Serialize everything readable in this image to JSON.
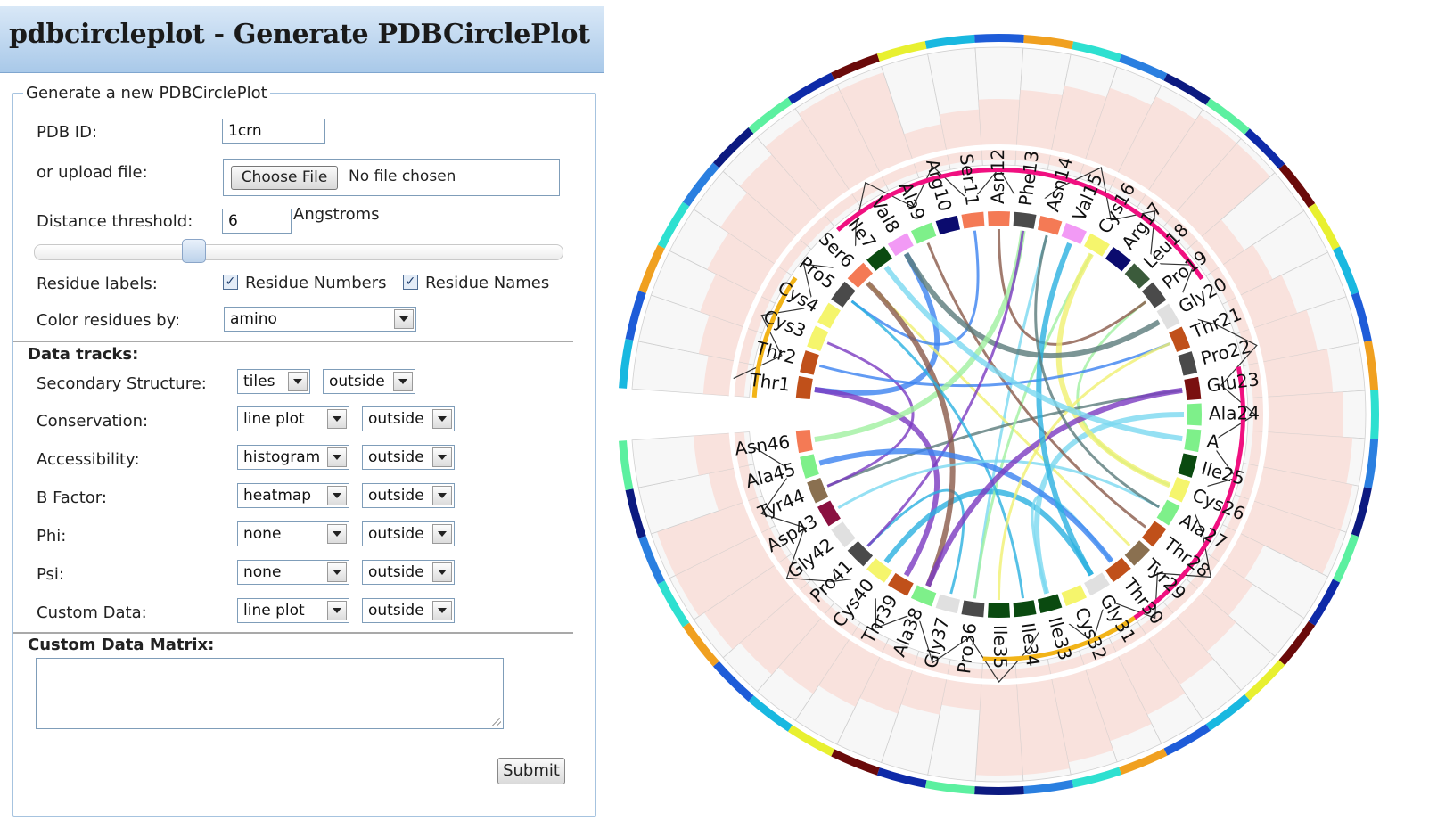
{
  "page": {
    "title": "pdbcircleplot - Generate PDBCirclePlot"
  },
  "form": {
    "legend": "Generate a new PDBCirclePlot",
    "pdb_id_label": "PDB ID:",
    "pdb_id_value": "1crn",
    "upload_label": "or upload file:",
    "choose_file_label": "Choose File",
    "no_file_text": "No file chosen",
    "distance_label": "Distance threshold:",
    "distance_value": "6",
    "distance_unit": "Angstroms",
    "distance_slider_fraction": 0.3,
    "residue_labels_label": "Residue labels:",
    "residue_numbers_label": "Residue Numbers",
    "residue_numbers_checked": true,
    "residue_names_label": "Residue Names",
    "residue_names_checked": true,
    "color_by_label": "Color residues by:",
    "color_by_value": "amino"
  },
  "data_tracks": {
    "heading": "Data tracks:",
    "rows": [
      {
        "label": "Secondary Structure:",
        "type": "tiles",
        "position": "outside"
      },
      {
        "label": "Conservation:",
        "type": "line plot",
        "position": "outside"
      },
      {
        "label": "Accessibility:",
        "type": "histogram",
        "position": "outside"
      },
      {
        "label": "B Factor:",
        "type": "heatmap",
        "position": "outside"
      },
      {
        "label": "Phi:",
        "type": "none",
        "position": "outside"
      },
      {
        "label": "Psi:",
        "type": "none",
        "position": "outside"
      },
      {
        "label": "Custom Data:",
        "type": "line plot",
        "position": "outside"
      }
    ]
  },
  "custom_matrix": {
    "heading": "Custom Data Matrix:",
    "value": ""
  },
  "submit_label": "Submit",
  "circle_plot": {
    "residues": [
      "Thr1",
      "Thr2",
      "Cys3",
      "Cys4",
      "Pro5",
      "Ser6",
      "Ile7",
      "Val8",
      "Ala9",
      "Arg10",
      "Ser11",
      "Asn12",
      "Phe13",
      "Asn14",
      "Val15",
      "Cys16",
      "Arg17",
      "Leu18",
      "Pro19",
      "Gly20",
      "Thr21",
      "Pro22",
      "Glu23",
      "Ala24",
      "A",
      "Ile25",
      "Cys26",
      "Ala27",
      "Thr28",
      "Tyr29",
      "Thr30",
      "Gly31",
      "Cys32",
      "Ile33",
      "Ile34",
      "Ile35",
      "Pro36",
      "Gly37",
      "Ala38",
      "Thr39",
      "Cys40",
      "Pro41",
      "Gly42",
      "Asp43",
      "Tyr44",
      "Ala45",
      "Asn46"
    ],
    "residue_colors": [
      "#c0501a",
      "#c0501a",
      "#f5f56c",
      "#f5f56c",
      "#4a4a4a",
      "#f47a55",
      "#0a4a10",
      "#f29af5",
      "#7ef08a",
      "#0b0b6e",
      "#f47a55",
      "#f47a55",
      "#4a4a4a",
      "#f47a55",
      "#f29af5",
      "#f5f56c",
      "#0b0b6e",
      "#3b5b3b",
      "#4a4a4a",
      "#e0e0e0",
      "#c0501a",
      "#4a4a4a",
      "#7a1010",
      "#7ef08a",
      "#7ef08a",
      "#0a4a10",
      "#f5f56c",
      "#7ef08a",
      "#c0501a",
      "#8a7050",
      "#c0501a",
      "#e0e0e0",
      "#f5f56c",
      "#0a4a10",
      "#0a4a10",
      "#0a4a10",
      "#4a4a4a",
      "#e0e0e0",
      "#7ef08a",
      "#c0501a",
      "#f5f56c",
      "#4a4a4a",
      "#e0e0e0",
      "#8a1040",
      "#8a7050",
      "#7ef08a",
      "#f47a55"
    ]
  }
}
